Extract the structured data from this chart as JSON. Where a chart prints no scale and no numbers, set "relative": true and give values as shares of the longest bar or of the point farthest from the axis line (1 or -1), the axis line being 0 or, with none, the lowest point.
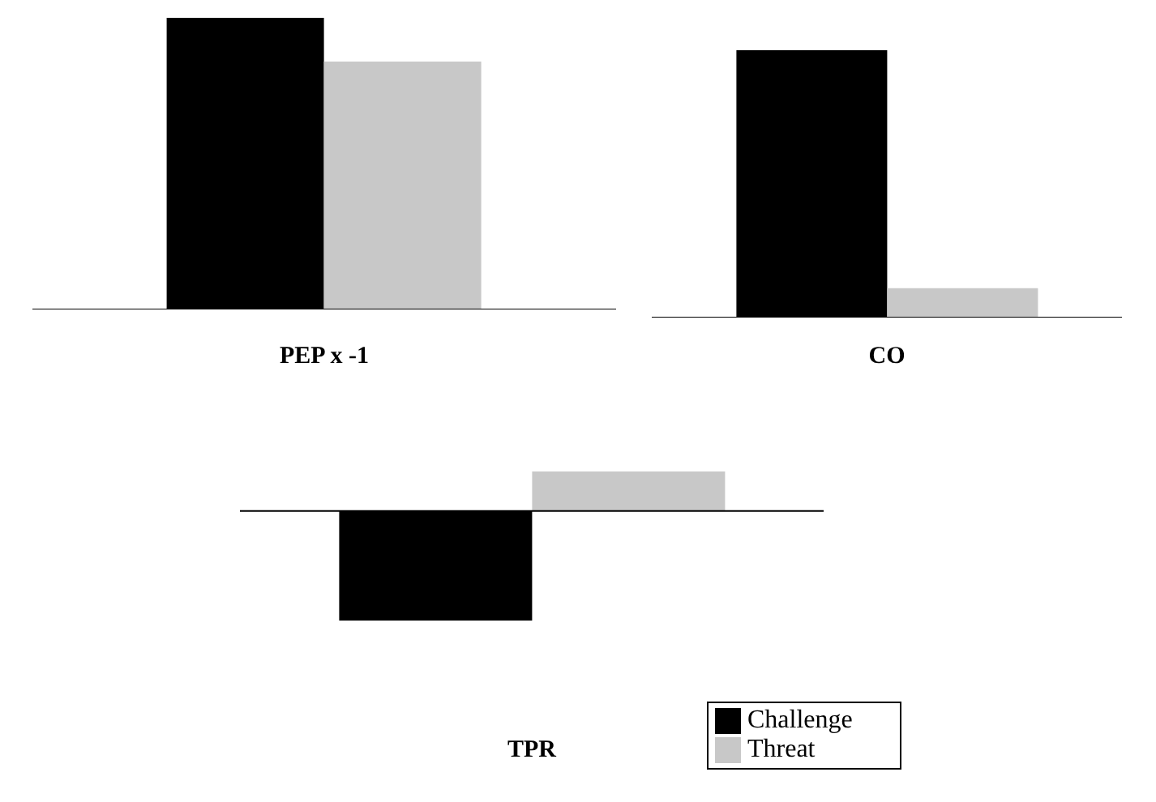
{
  "chart_data": [
    {
      "type": "bar",
      "xlabel": "PEP x -1",
      "categories": [
        null
      ],
      "relative": true,
      "series": [
        {
          "color": "#000000",
          "values": [
            1
          ]
        },
        {
          "color": "#c8c8c8",
          "values": [
            0.85
          ]
        }
      ]
    },
    {
      "type": "bar",
      "xlabel": "CO",
      "categories": [
        null
      ],
      "relative": true,
      "series": [
        {
          "color": "#000000",
          "values": [
            1
          ]
        },
        {
          "color": "#c8c8c8",
          "values": [
            0.11
          ]
        }
      ]
    },
    {
      "type": "bar",
      "xlabel": "TPR",
      "categories": [
        null
      ],
      "relative": true,
      "legend": "bottom right",
      "series": [
        {
          "name": "Challenge",
          "color": "#000000",
          "values": [
            -1
          ]
        },
        {
          "name": "Threat",
          "color": "#c8c8c8",
          "values": [
            0.36
          ]
        }
      ]
    }
  ]
}
